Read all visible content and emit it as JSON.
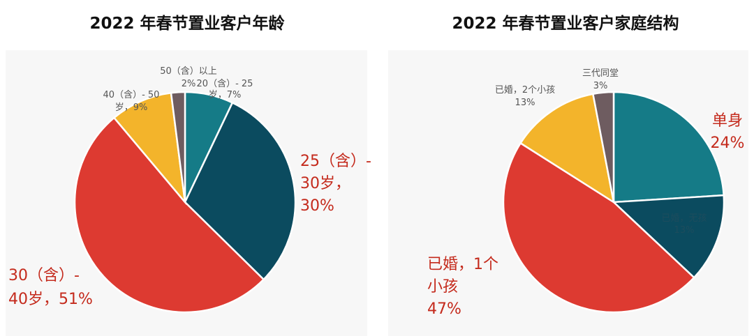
{
  "chart_data": [
    {
      "type": "pie",
      "title": "2022 年春节置业客户年龄",
      "slices": [
        {
          "label_lines": [
            "20（含）- 25",
            "岁，7%"
          ],
          "value": 7,
          "color": "#157b87"
        },
        {
          "label_lines": [
            "25（含）-",
            "30岁，",
            "30%"
          ],
          "value": 30,
          "color": "#0b4b5f"
        },
        {
          "label_lines": [
            "30（含）-",
            "40岁，51%"
          ],
          "value": 51,
          "color": "#dd3a31"
        },
        {
          "label_lines": [
            "40（含）- 50",
            "岁，9%"
          ],
          "value": 9,
          "color": "#f3b42b"
        },
        {
          "label_lines": [
            "50（含）以上",
            "2%"
          ],
          "value": 2,
          "color": "#6e5c60"
        }
      ]
    },
    {
      "type": "pie",
      "title": "2022 年春节置业客户家庭结构",
      "slices": [
        {
          "label_lines": [
            "单身",
            "24%"
          ],
          "value": 24,
          "color": "#157b87"
        },
        {
          "label_lines": [
            "已婚，无孩",
            "13%"
          ],
          "value": 13,
          "color": "#0b4b5f"
        },
        {
          "label_lines": [
            "已婚，1个",
            "小孩",
            "47%"
          ],
          "value": 47,
          "color": "#dd3a31"
        },
        {
          "label_lines": [
            "已婚，2个小孩",
            "13%"
          ],
          "value": 13,
          "color": "#f3b42b"
        },
        {
          "label_lines": [
            "三代同堂",
            "3%"
          ],
          "value": 3,
          "color": "#6e5c60"
        }
      ]
    }
  ]
}
